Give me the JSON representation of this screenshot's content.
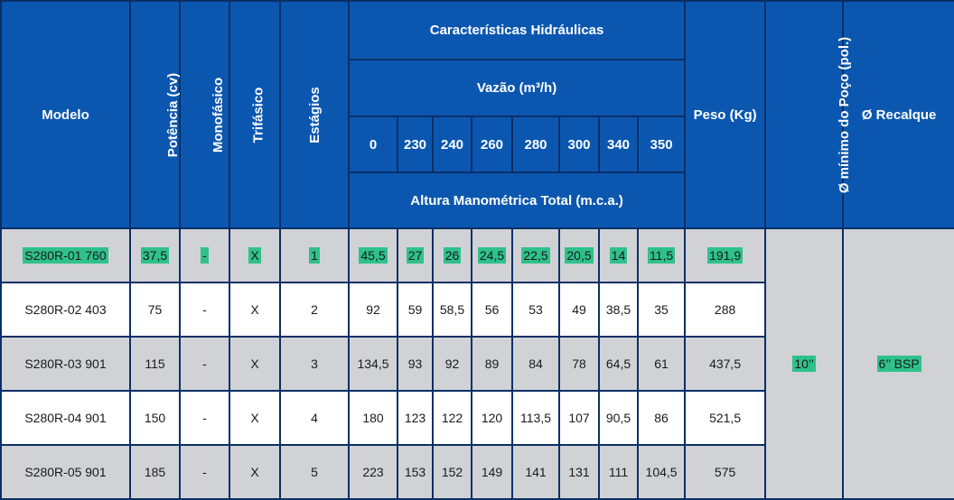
{
  "header": {
    "modelo": "Modelo",
    "potencia": "Potência (cv)",
    "monofasico": "Monofásico",
    "trifasico": "Trifásico",
    "estagios": "Estágios",
    "caracteristicas": "Características Hidráulicas",
    "vazao": "Vazão (m³/h)",
    "flows": [
      "0",
      "230",
      "240",
      "260",
      "280",
      "300",
      "340",
      "350"
    ],
    "altura": "Altura Manométrica Total (m.c.a.)",
    "peso": "Peso (Kg)",
    "poco": "Ø mínimo do Poço (pol.)",
    "recalque": "Ø Recalque"
  },
  "rows": [
    {
      "modelo": "S280R-01 760",
      "potencia": "37,5",
      "mono": "-",
      "tri": "X",
      "estagios": "1",
      "alturas": [
        "45,5",
        "27",
        "26",
        "24,5",
        "22,5",
        "20,5",
        "14",
        "11,5"
      ],
      "peso": "191,9"
    },
    {
      "modelo": "S280R-02 403",
      "potencia": "75",
      "mono": "-",
      "tri": "X",
      "estagios": "2",
      "alturas": [
        "92",
        "59",
        "58,5",
        "56",
        "53",
        "49",
        "38,5",
        "35"
      ],
      "peso": "288"
    },
    {
      "modelo": "S280R-03 901",
      "potencia": "115",
      "mono": "-",
      "tri": "X",
      "estagios": "3",
      "alturas": [
        "134,5",
        "93",
        "92",
        "89",
        "84",
        "78",
        "64,5",
        "61"
      ],
      "peso": "437,5"
    },
    {
      "modelo": "S280R-04 901",
      "potencia": "150",
      "mono": "-",
      "tri": "X",
      "estagios": "4",
      "alturas": [
        "180",
        "123",
        "122",
        "120",
        "113,5",
        "107",
        "90,5",
        "86"
      ],
      "peso": "521,5"
    },
    {
      "modelo": "S280R-05 901",
      "potencia": "185",
      "mono": "-",
      "tri": "X",
      "estagios": "5",
      "alturas": [
        "223",
        "153",
        "152",
        "149",
        "141",
        "131",
        "111",
        "104,5"
      ],
      "peso": "575"
    }
  ],
  "merged": {
    "poco": "10’’",
    "recalque": "6’’ BSP"
  },
  "colors": {
    "header_bg": "#0b57b0",
    "border": "#0a2f66",
    "row_gray": "#d0d2d6",
    "highlight": "#2fc18c"
  }
}
